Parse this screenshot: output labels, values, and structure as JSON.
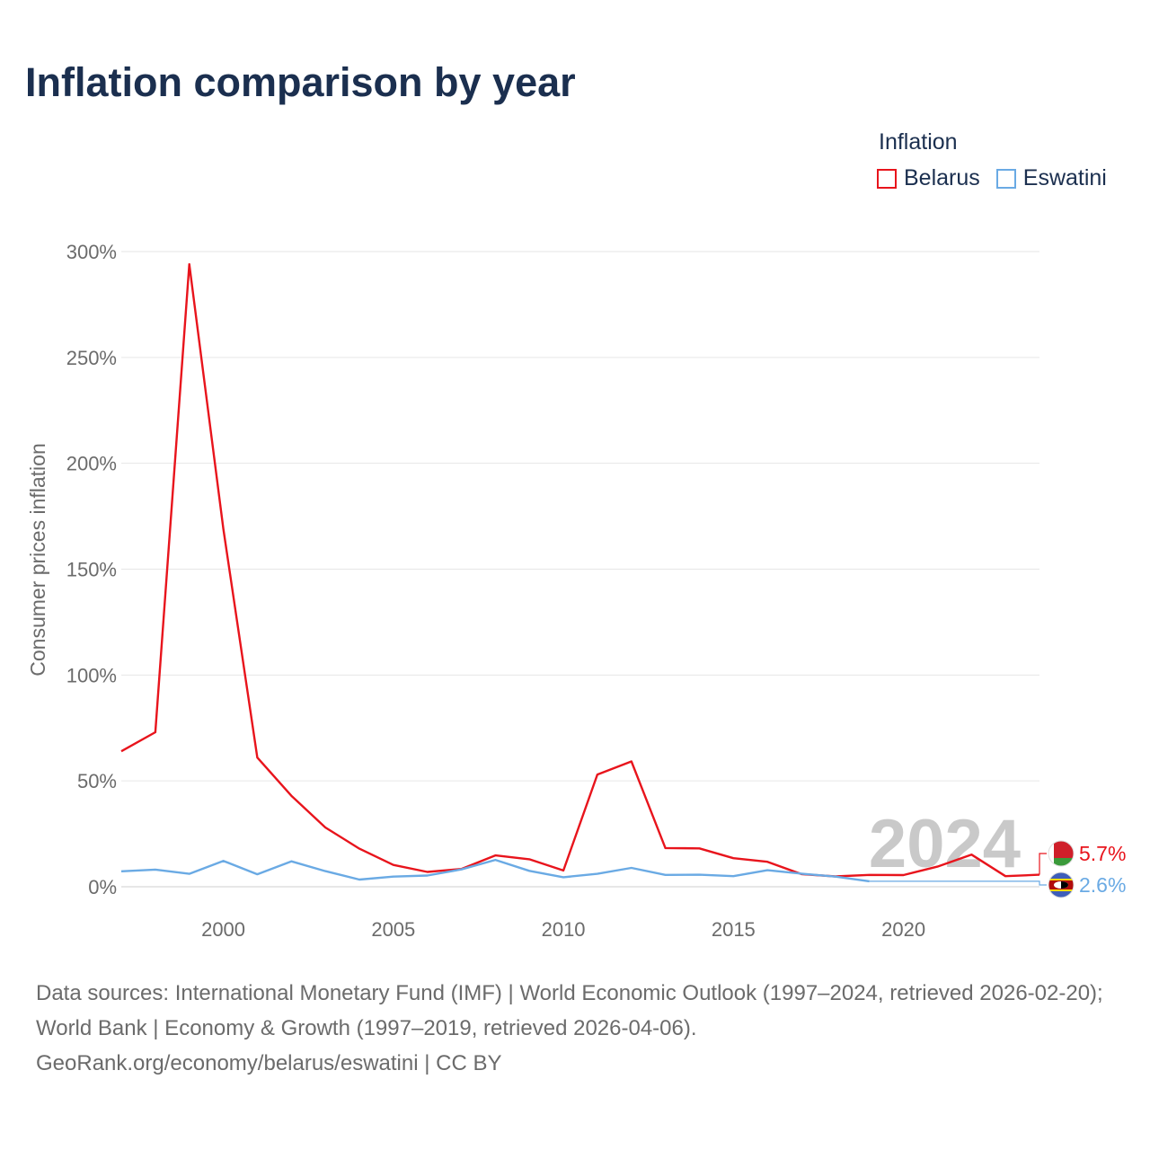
{
  "title": "Inflation comparison by year",
  "legend": {
    "title": "Inflation",
    "items": [
      {
        "label": "Belarus",
        "color": "#e8141c"
      },
      {
        "label": "Eswatini",
        "color": "#6aaae4"
      }
    ]
  },
  "year_label": "2024",
  "footer": {
    "sources": "Data sources: International Monetary Fund (IMF) | World Economic Outlook (1997–2024, retrieved 2026-02-20); World Bank | Economy & Growth (1997–2019, retrieved 2026-04-06).",
    "credit": "GeoRank.org/economy/belarus/eswatini | CC BY"
  },
  "chart_data": {
    "type": "line",
    "title": "Inflation comparison by year",
    "xlabel": "",
    "ylabel": "Consumer prices inflation",
    "xlim": [
      1997,
      2024
    ],
    "ylim": [
      0,
      300
    ],
    "x_ticks": [
      2000,
      2005,
      2010,
      2015,
      2020
    ],
    "y_ticks": [
      0,
      50,
      100,
      150,
      200,
      250,
      300
    ],
    "y_tick_labels": [
      "0%",
      "50%",
      "100%",
      "150%",
      "200%",
      "250%",
      "300%"
    ],
    "grid": true,
    "legend_position": "top-right",
    "series": [
      {
        "name": "Belarus",
        "color": "#e8141c",
        "x": [
          1997,
          1998,
          1999,
          2000,
          2001,
          2002,
          2003,
          2004,
          2005,
          2006,
          2007,
          2008,
          2009,
          2010,
          2011,
          2012,
          2013,
          2014,
          2015,
          2016,
          2017,
          2018,
          2019,
          2020,
          2021,
          2022,
          2023,
          2024
        ],
        "values": [
          64,
          73,
          294,
          169,
          61,
          43,
          28,
          18,
          10.3,
          7,
          8.4,
          14.8,
          13,
          7.7,
          53,
          59.2,
          18.3,
          18.1,
          13.5,
          11.8,
          6,
          4.9,
          5.6,
          5.5,
          9.5,
          15.2,
          5,
          5.7
        ],
        "end_label": "5.7%"
      },
      {
        "name": "Eswatini",
        "color": "#6aaae4",
        "x": [
          1997,
          1998,
          1999,
          2000,
          2001,
          2002,
          2003,
          2004,
          2005,
          2006,
          2007,
          2008,
          2009,
          2010,
          2011,
          2012,
          2013,
          2014,
          2015,
          2016,
          2017,
          2018,
          2019
        ],
        "values": [
          7.3,
          8.1,
          6.1,
          12.2,
          5.9,
          12,
          7.4,
          3.4,
          4.8,
          5.3,
          8.2,
          12.7,
          7.5,
          4.5,
          6.1,
          8.9,
          5.6,
          5.7,
          5,
          7.8,
          6.2,
          4.8,
          2.6
        ],
        "end_label": "2.6%"
      }
    ]
  }
}
